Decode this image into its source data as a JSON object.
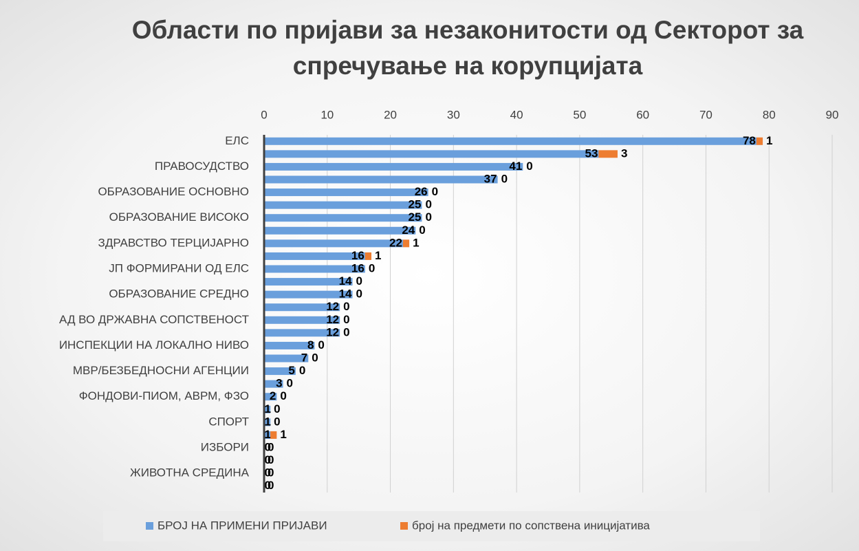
{
  "chart_data": {
    "type": "stacked_barh",
    "title": "Области по пријави за незаконитости од Секторот за спречување на корупцијата",
    "categories": [
      "ЕЛС",
      null,
      "ПРАВОСУДСТВО",
      null,
      "ОБРАЗОВАНИЕ ОСНОВНО",
      null,
      "ОБРАЗОВАНИЕ ВИСОКО",
      null,
      "ЗДРАВСТВО ТЕРЦИЈАРНО",
      null,
      "ЈП ФОРМИРАНИ ОД ЕЛС",
      null,
      "ОБРАЗОВАНИЕ СРЕДНО",
      null,
      "АД ВО ДРЖАВНА СОПСТВЕНОСТ",
      null,
      "ИНСПЕКЦИИ НА ЛОКАЛНО НИВО",
      null,
      "МВР/БЕЗБЕДНОСНИ АГЕНЦИИ",
      null,
      "ФОНДОВИ-ПИОМ, АВРМ, ФЗО",
      null,
      "СПОРТ",
      null,
      "ИЗБОРИ",
      null,
      "ЖИВОТНА СРЕДИНА",
      null
    ],
    "series": [
      {
        "name": "БРОЈ НА ПРИМЕНИ ПРИЈАВИ",
        "color": "#6a9fdc",
        "values": [
          78,
          53,
          41,
          37,
          26,
          25,
          25,
          24,
          22,
          16,
          16,
          14,
          14,
          12,
          12,
          12,
          8,
          7,
          5,
          3,
          2,
          1,
          1,
          1,
          0,
          0,
          0,
          0
        ]
      },
      {
        "name": "број на предмети по сопствена иницијатива",
        "color": "#ed7d31",
        "values": [
          1,
          3,
          0,
          0,
          0,
          0,
          0,
          0,
          1,
          1,
          0,
          0,
          0,
          0,
          0,
          0,
          0,
          0,
          0,
          0,
          0,
          0,
          0,
          1,
          0,
          0,
          0,
          0
        ]
      }
    ],
    "xlim": [
      0,
      90
    ],
    "xticks": [
      0,
      10,
      20,
      30,
      40,
      50,
      60,
      70,
      80,
      90
    ],
    "grid": true,
    "legend": "bottom"
  }
}
